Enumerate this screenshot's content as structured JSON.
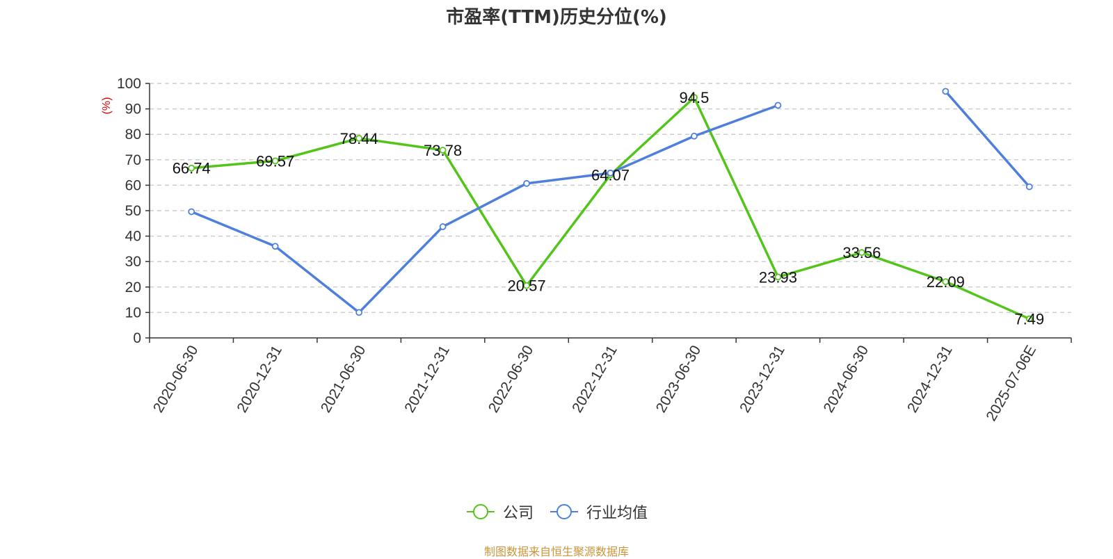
{
  "chart_data": {
    "type": "line",
    "title": "市盈率(TTM)历史分位(%)",
    "ylabel": "(%)",
    "ylim": [
      0,
      100
    ],
    "yticks": [
      0,
      10,
      20,
      30,
      40,
      50,
      60,
      70,
      80,
      90,
      100
    ],
    "categories": [
      "2020-06-30",
      "2020-12-31",
      "2021-06-30",
      "2021-12-31",
      "2022-06-30",
      "2022-12-31",
      "2023-06-30",
      "2023-12-31",
      "2024-06-30",
      "2024-12-31",
      "2025-07-06E"
    ],
    "series": [
      {
        "name": "公司",
        "color": "#52c41a",
        "values": [
          66.74,
          69.57,
          78.44,
          73.78,
          20.57,
          64.07,
          94.5,
          23.93,
          33.56,
          22.09,
          7.49
        ],
        "labels": [
          "66.74",
          "69.57",
          "78.44",
          "73.78",
          "20.57",
          "64.07",
          "94.5",
          "23.93",
          "33.56",
          "22.09",
          "7.49"
        ]
      },
      {
        "name": "行业均值",
        "color": "#4e7fdc",
        "values": [
          49.6,
          36.0,
          10.0,
          43.7,
          60.7,
          64.8,
          79.3,
          91.4,
          null,
          96.9,
          59.4
        ]
      }
    ],
    "grid": true,
    "legend_position": "bottom"
  },
  "source": "制图数据来自恒生聚源数据库"
}
